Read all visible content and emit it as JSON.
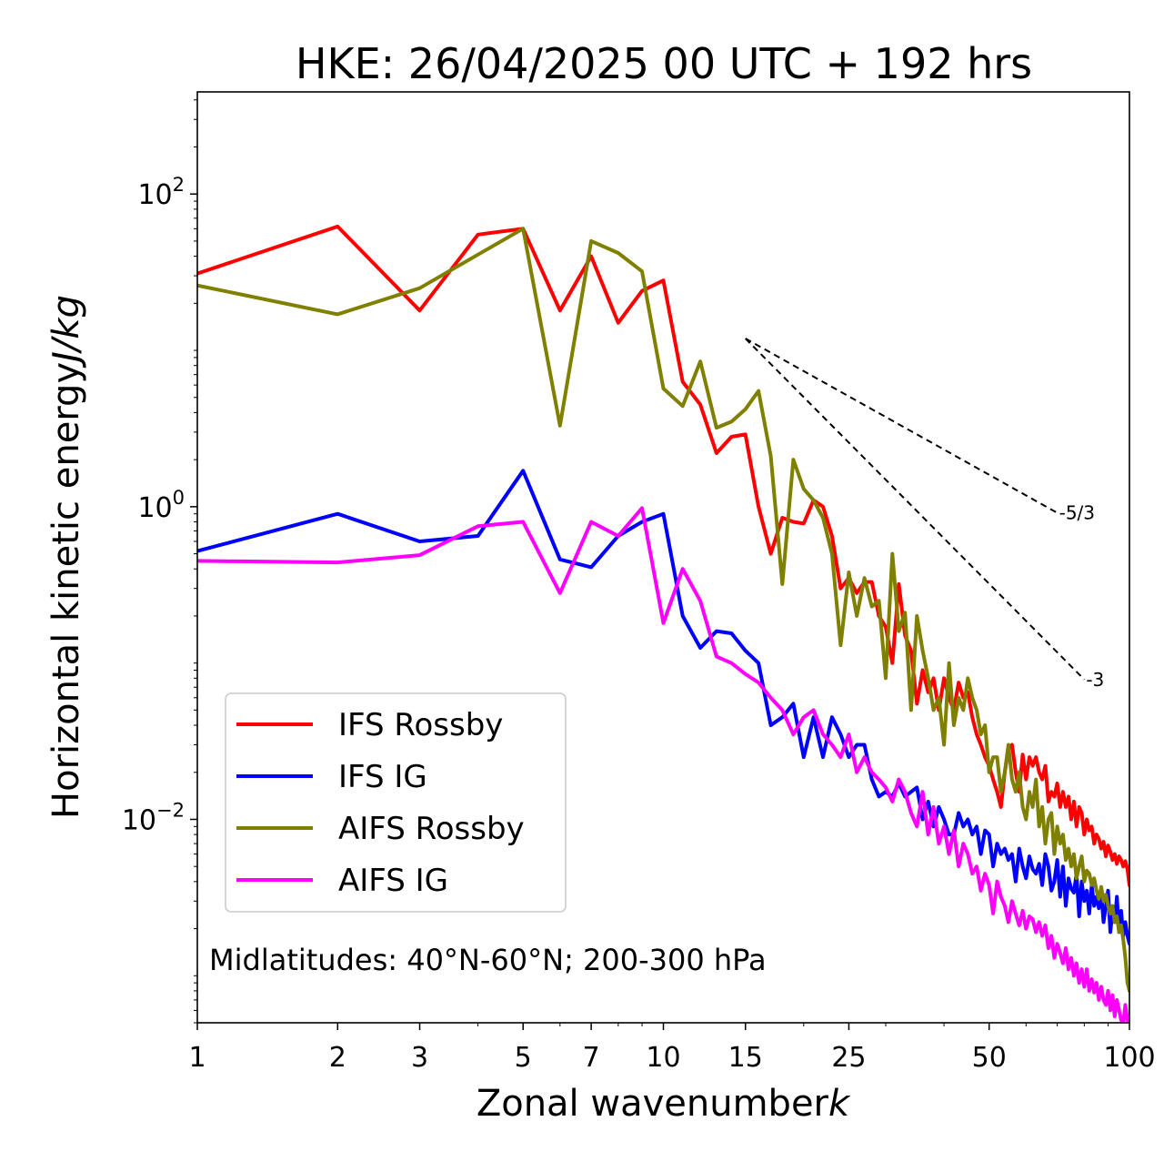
{
  "chart_data": {
    "type": "line",
    "title": "HKE: 26/04/2025 00 UTC + 192 hrs",
    "xlabel": "Zonal wavenumber",
    "xlabel_var": "k",
    "ylabel": "Horizontal kinetic energy",
    "ylabel_unit": "J/kg",
    "xscale": "log",
    "yscale": "log",
    "xlim": [
      1,
      100
    ],
    "ylim": [
      0.0005,
      450
    ],
    "x_ticks": [
      {
        "value": 1,
        "label": "1"
      },
      {
        "value": 2,
        "label": "2"
      },
      {
        "value": 3,
        "label": "3"
      },
      {
        "value": 5,
        "label": "5"
      },
      {
        "value": 7,
        "label": "7"
      },
      {
        "value": 10,
        "label": "10"
      },
      {
        "value": 15,
        "label": "15"
      },
      {
        "value": 25,
        "label": "25"
      },
      {
        "value": 50,
        "label": "50"
      },
      {
        "value": 100,
        "label": "100"
      }
    ],
    "y_ticks": [
      {
        "value": 100,
        "base": "10",
        "exp": "2"
      },
      {
        "value": 1,
        "base": "10",
        "exp": "0"
      },
      {
        "value": 0.01,
        "base": "10",
        "exp": "−2"
      }
    ],
    "annotation": "Midlatitudes: 40°N-60°N; 200-300 hPa",
    "legend_position": "center-left",
    "reference_slopes": [
      {
        "label": "-5/3",
        "slope": -1.6667,
        "x_start": 15,
        "y_start": 11.9,
        "x_end": 70
      },
      {
        "label": "-3",
        "slope": -3,
        "x_start": 15,
        "y_start": 11.9,
        "x_end": 80
      }
    ],
    "series": [
      {
        "name": "IFS Rossby",
        "color": "#ff0000",
        "x": [
          1,
          2,
          3,
          4,
          5,
          6,
          7,
          8,
          9,
          10,
          11,
          12,
          13,
          14,
          15,
          16,
          17,
          18,
          19,
          20,
          21,
          22,
          23,
          24,
          25,
          26,
          27,
          28,
          29,
          30,
          31,
          32,
          33,
          34,
          35,
          36,
          37,
          38,
          39,
          40,
          41,
          42,
          43,
          44,
          45,
          46,
          47,
          48,
          49,
          50,
          51,
          52,
          53,
          54,
          55,
          56,
          57,
          58,
          59,
          60,
          61,
          62,
          63,
          64,
          65,
          66,
          67,
          68,
          69,
          70,
          71,
          72,
          73,
          74,
          75,
          76,
          77,
          78,
          79,
          80,
          81,
          82,
          83,
          84,
          85,
          86,
          87,
          88,
          89,
          90,
          91,
          92,
          93,
          94,
          95,
          96,
          97,
          98,
          99,
          100
        ],
        "y": [
          31,
          62,
          18,
          55,
          60,
          18,
          40,
          15,
          24,
          28,
          6.3,
          4.5,
          2.2,
          2.8,
          2.9,
          1.0,
          0.5,
          0.85,
          0.8,
          0.78,
          1.1,
          1.0,
          0.65,
          0.3,
          0.35,
          0.28,
          0.33,
          0.33,
          0.2,
          0.17,
          0.1,
          0.32,
          0.15,
          0.12,
          0.055,
          0.09,
          0.065,
          0.08,
          0.05,
          0.08,
          0.06,
          0.05,
          0.075,
          0.06,
          0.065,
          0.045,
          0.035,
          0.03,
          0.025,
          0.022,
          0.018,
          0.015,
          0.012,
          0.02,
          0.028,
          0.03,
          0.02,
          0.015,
          0.026,
          0.018,
          0.025,
          0.022,
          0.025,
          0.02,
          0.018,
          0.022,
          0.013,
          0.015,
          0.014,
          0.017,
          0.012,
          0.015,
          0.012,
          0.014,
          0.01,
          0.013,
          0.009,
          0.012,
          0.011,
          0.008,
          0.01,
          0.0085,
          0.009,
          0.007,
          0.008,
          0.0075,
          0.0065,
          0.0072,
          0.0058,
          0.0068,
          0.0062,
          0.0055,
          0.006,
          0.0052,
          0.0058,
          0.0055,
          0.005,
          0.0054,
          0.0048,
          0.0038
        ]
      },
      {
        "name": "IFS IG",
        "color": "#0000ff",
        "x": [
          1,
          2,
          3,
          4,
          5,
          6,
          7,
          8,
          9,
          10,
          11,
          12,
          13,
          14,
          15,
          16,
          17,
          18,
          19,
          20,
          21,
          22,
          23,
          24,
          25,
          26,
          27,
          28,
          29,
          30,
          31,
          32,
          33,
          34,
          35,
          36,
          37,
          38,
          39,
          40,
          41,
          42,
          43,
          44,
          45,
          46,
          47,
          48,
          49,
          50,
          51,
          52,
          53,
          54,
          55,
          56,
          57,
          58,
          59,
          60,
          61,
          62,
          63,
          64,
          65,
          66,
          67,
          68,
          69,
          70,
          71,
          72,
          73,
          74,
          75,
          76,
          77,
          78,
          79,
          80,
          81,
          82,
          83,
          84,
          85,
          86,
          87,
          88,
          89,
          90,
          91,
          92,
          93,
          94,
          95,
          96,
          97,
          98,
          99,
          100
        ],
        "y": [
          0.52,
          0.9,
          0.6,
          0.65,
          1.7,
          0.46,
          0.41,
          0.65,
          0.8,
          0.9,
          0.2,
          0.125,
          0.16,
          0.155,
          0.12,
          0.1,
          0.04,
          0.045,
          0.055,
          0.025,
          0.045,
          0.025,
          0.045,
          0.035,
          0.025,
          0.03,
          0.03,
          0.018,
          0.014,
          0.015,
          0.014,
          0.017,
          0.014,
          0.015,
          0.016,
          0.01,
          0.013,
          0.009,
          0.012,
          0.01,
          0.008,
          0.008,
          0.011,
          0.009,
          0.01,
          0.008,
          0.009,
          0.006,
          0.0085,
          0.008,
          0.005,
          0.007,
          0.006,
          0.0065,
          0.0055,
          0.006,
          0.004,
          0.0065,
          0.005,
          0.0042,
          0.0058,
          0.0048,
          0.0045,
          0.0052,
          0.0038,
          0.006,
          0.005,
          0.0035,
          0.004,
          0.0055,
          0.0032,
          0.005,
          0.0028,
          0.0042,
          0.0036,
          0.0034,
          0.0045,
          0.0024,
          0.004,
          0.003,
          0.0035,
          0.0025,
          0.0038,
          0.0028,
          0.0032,
          0.0027,
          0.0034,
          0.0022,
          0.0028,
          0.0035,
          0.0019,
          0.0026,
          0.0022,
          0.0032,
          0.0019,
          0.0026,
          0.0018,
          0.0022,
          0.0018,
          0.0016
        ]
      },
      {
        "name": "AIFS Rossby",
        "color": "#808000",
        "x": [
          1,
          2,
          3,
          4,
          5,
          6,
          7,
          8,
          9,
          10,
          11,
          12,
          13,
          14,
          15,
          16,
          17,
          18,
          19,
          20,
          21,
          22,
          23,
          24,
          25,
          26,
          27,
          28,
          29,
          30,
          31,
          32,
          33,
          34,
          35,
          36,
          37,
          38,
          39,
          40,
          41,
          42,
          43,
          44,
          45,
          46,
          47,
          48,
          49,
          50,
          51,
          52,
          53,
          54,
          55,
          56,
          57,
          58,
          59,
          60,
          61,
          62,
          63,
          64,
          65,
          66,
          67,
          68,
          69,
          70,
          71,
          72,
          73,
          74,
          75,
          76,
          77,
          78,
          79,
          80,
          81,
          82,
          83,
          84,
          85,
          86,
          87,
          88,
          89,
          90,
          91,
          92,
          93,
          94,
          95,
          96,
          97,
          98,
          99,
          100
        ],
        "y": [
          26,
          17,
          25,
          41,
          60,
          3.3,
          50,
          42,
          32,
          5.7,
          4.4,
          8.5,
          3.2,
          3.5,
          4.2,
          5.5,
          2.1,
          0.32,
          2.0,
          1.3,
          1.1,
          0.85,
          0.5,
          0.13,
          0.38,
          0.2,
          0.35,
          0.23,
          0.25,
          0.08,
          0.5,
          0.16,
          0.21,
          0.05,
          0.2,
          0.12,
          0.08,
          0.05,
          0.06,
          0.03,
          0.1,
          0.04,
          0.06,
          0.05,
          0.08,
          0.06,
          0.05,
          0.035,
          0.04,
          0.02,
          0.025,
          0.025,
          0.015,
          0.02,
          0.03,
          0.018,
          0.015,
          0.02,
          0.012,
          0.01,
          0.015,
          0.012,
          0.018,
          0.009,
          0.012,
          0.007,
          0.01,
          0.011,
          0.006,
          0.009,
          0.007,
          0.008,
          0.0055,
          0.0065,
          0.005,
          0.006,
          0.0042,
          0.005,
          0.0058,
          0.004,
          0.0047,
          0.0045,
          0.0038,
          0.0042,
          0.0035,
          0.0031,
          0.0037,
          0.003,
          0.0033,
          0.0028,
          0.0025,
          0.0028,
          0.0022,
          0.0024,
          0.0019,
          0.0021,
          0.0017,
          0.0013,
          0.0009,
          0.0008
        ]
      },
      {
        "name": "AIFS IG",
        "color": "#ff00ff",
        "x": [
          1,
          2,
          3,
          4,
          5,
          6,
          7,
          8,
          9,
          10,
          11,
          12,
          13,
          14,
          15,
          16,
          17,
          18,
          19,
          20,
          21,
          22,
          23,
          24,
          25,
          26,
          27,
          28,
          29,
          30,
          31,
          32,
          33,
          34,
          35,
          36,
          37,
          38,
          39,
          40,
          41,
          42,
          43,
          44,
          45,
          46,
          47,
          48,
          49,
          50,
          51,
          52,
          53,
          54,
          55,
          56,
          57,
          58,
          59,
          60,
          61,
          62,
          63,
          64,
          65,
          66,
          67,
          68,
          69,
          70,
          71,
          72,
          73,
          74,
          75,
          76,
          77,
          78,
          79,
          80,
          81,
          82,
          83,
          84,
          85,
          86,
          87,
          88,
          89,
          90,
          91,
          92,
          93,
          94,
          95,
          96,
          97,
          98,
          99,
          100
        ],
        "y": [
          0.45,
          0.44,
          0.49,
          0.75,
          0.8,
          0.28,
          0.8,
          0.65,
          0.98,
          0.18,
          0.4,
          0.25,
          0.11,
          0.1,
          0.085,
          0.075,
          0.06,
          0.05,
          0.035,
          0.045,
          0.05,
          0.035,
          0.03,
          0.025,
          0.035,
          0.02,
          0.025,
          0.02,
          0.018,
          0.016,
          0.013,
          0.018,
          0.015,
          0.011,
          0.009,
          0.015,
          0.008,
          0.012,
          0.007,
          0.009,
          0.006,
          0.0085,
          0.005,
          0.007,
          0.006,
          0.0045,
          0.005,
          0.0035,
          0.0045,
          0.0038,
          0.0025,
          0.004,
          0.0032,
          0.0028,
          0.0022,
          0.003,
          0.0025,
          0.0021,
          0.0026,
          0.002,
          0.0024,
          0.0023,
          0.0019,
          0.0022,
          0.0018,
          0.0021,
          0.0015,
          0.0018,
          0.0013,
          0.0016,
          0.0014,
          0.0012,
          0.0015,
          0.0011,
          0.0013,
          0.001,
          0.0012,
          0.0009,
          0.0011,
          0.00085,
          0.0011,
          0.0008,
          0.00095,
          0.00078,
          0.0009,
          0.0007,
          0.00085,
          0.0007,
          0.00065,
          0.0008,
          0.0006,
          0.00075,
          0.00055,
          0.0007,
          0.0006,
          0.00052,
          0.0005,
          0.00065,
          0.00052,
          0.0005
        ]
      }
    ]
  }
}
